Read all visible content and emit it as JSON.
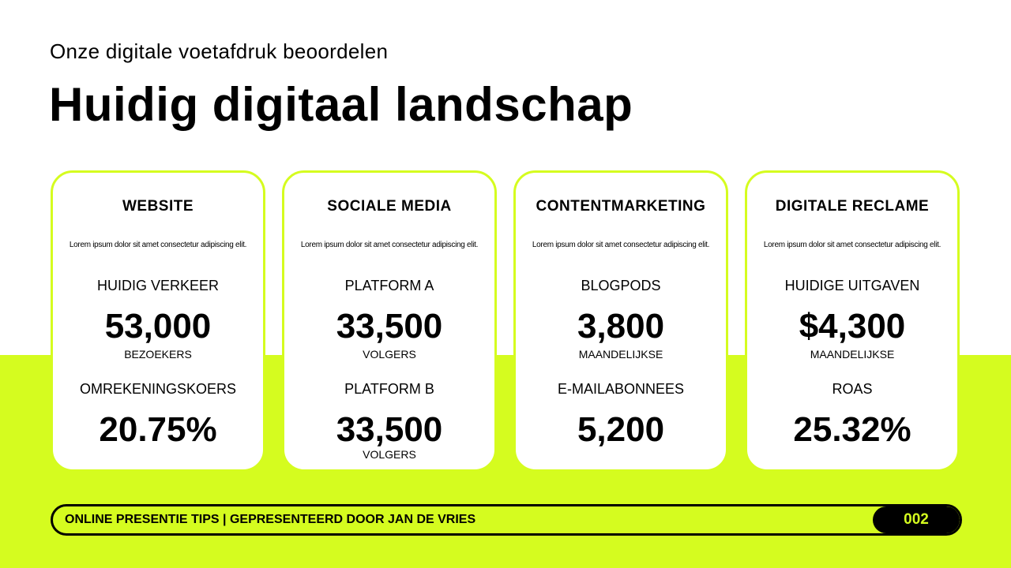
{
  "header": {
    "subtitle": "Onze digitale voetafdruk beoordelen",
    "title": "Huidig digitaal landschap"
  },
  "cards": [
    {
      "title": "WEBSITE",
      "description": "Lorem ipsum dolor sit amet consectetur adipiscing elit.",
      "metrics": [
        {
          "label": "HUIDIG VERKEER",
          "value": "53,000",
          "unit": "BEZOEKERS"
        },
        {
          "label": "OMREKENINGSKOERS",
          "value": "20.75%"
        }
      ]
    },
    {
      "title": "SOCIALE MEDIA",
      "description": "Lorem ipsum dolor sit amet consectetur adipiscing elit.",
      "metrics": [
        {
          "label": "PLATFORM A",
          "value": "33,500",
          "unit": "VOLGERS"
        },
        {
          "label": "PLATFORM B",
          "value": "33,500",
          "unit": "VOLGERS"
        }
      ]
    },
    {
      "title": "CONTENTMARKETING",
      "description": "Lorem ipsum dolor sit amet consectetur adipiscing elit.",
      "metrics": [
        {
          "label": "BLOGPODS",
          "value": "3,800",
          "unit": "MAANDELIJKSE"
        },
        {
          "label": "E-MAILABONNEES",
          "value": "5,200"
        }
      ]
    },
    {
      "title": "DIGITALE RECLAME",
      "description": "Lorem ipsum dolor sit amet consectetur adipiscing elit.",
      "metrics": [
        {
          "label": "HUIDIGE UITGAVEN",
          "value": "$4,300",
          "unit": "MAANDELIJKSE"
        },
        {
          "label": "ROAS",
          "value": "25.32%"
        }
      ]
    }
  ],
  "footer": {
    "text": "ONLINE PRESENTIE TIPS | GEPRESENTEERD DOOR JAN DE VRIES",
    "page": "002"
  }
}
